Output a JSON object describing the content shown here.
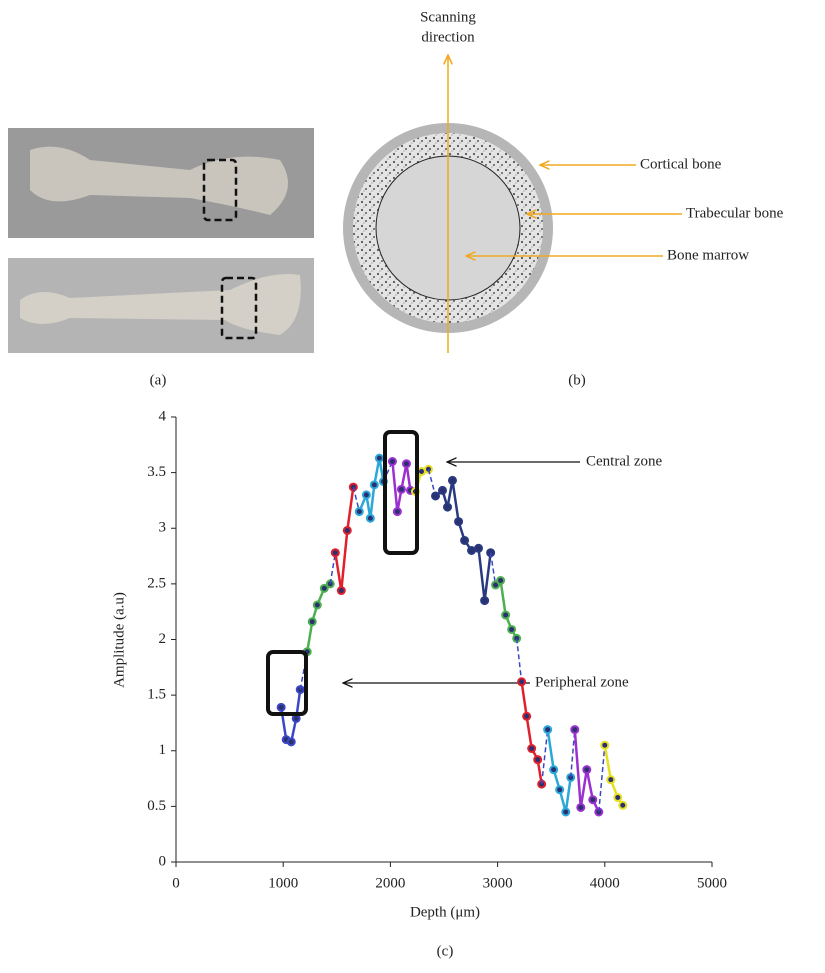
{
  "panels": {
    "a": {
      "label": "(a)"
    },
    "b": {
      "label": "(b)",
      "scan_label": [
        "Scanning",
        "direction"
      ],
      "callouts": [
        "Cortical bone",
        "Trabecular bone",
        "Bone marrow"
      ]
    },
    "c": {
      "label": "(c)"
    }
  },
  "chart_data": {
    "type": "line",
    "xlabel": "Depth (μm)",
    "ylabel": "Amplitude (a.u)",
    "annotations": [
      "Central zone",
      "Peripheral zone"
    ],
    "xlim": [
      0,
      5000
    ],
    "xticks": [
      0,
      1000,
      2000,
      3000,
      4000,
      5000
    ],
    "ylim": [
      0,
      4
    ],
    "yticks": [
      0,
      0.5,
      1,
      1.5,
      2,
      2.5,
      3,
      3.5,
      4
    ],
    "series": [
      {
        "color": "#3b48c6",
        "x": [
          981,
          1028,
          1075,
          1121,
          1159
        ],
        "values": [
          1.39,
          1.1,
          1.08,
          1.29,
          1.55
        ]
      },
      {
        "color": "#4caf50",
        "x": [
          1224,
          1271,
          1318,
          1383,
          1439
        ],
        "values": [
          1.89,
          2.16,
          2.31,
          2.46,
          2.5
        ]
      },
      {
        "color": "#e0202a",
        "x": [
          1486,
          1542,
          1598,
          1654
        ],
        "values": [
          2.78,
          2.44,
          2.98,
          3.37
        ]
      },
      {
        "color": "#2aa8d8",
        "x": [
          1710,
          1776,
          1813,
          1850,
          1897,
          1935
        ],
        "values": [
          3.15,
          3.3,
          3.09,
          3.39,
          3.63,
          3.42
        ]
      },
      {
        "color": "#9b30d0",
        "x": [
          2019,
          2065,
          2103,
          2150,
          2187
        ],
        "values": [
          3.6,
          3.15,
          3.35,
          3.58,
          3.34
        ]
      },
      {
        "color": "#e6e020",
        "x": [
          2234,
          2290,
          2355
        ],
        "values": [
          3.33,
          3.51,
          3.53
        ]
      },
      {
        "color": "#2a3a80",
        "x": [
          2421,
          2486,
          2533,
          2579,
          2636,
          2692,
          2757,
          2822,
          2879,
          2935
        ],
        "values": [
          3.29,
          3.34,
          3.19,
          3.43,
          3.06,
          2.89,
          2.8,
          2.82,
          2.35,
          2.78
        ]
      },
      {
        "color": "#4caf50",
        "x": [
          2981,
          3028,
          3075,
          3131,
          3178
        ],
        "values": [
          2.49,
          2.53,
          2.22,
          2.09,
          2.01
        ]
      },
      {
        "color": "#e0202a",
        "x": [
          3224,
          3271,
          3318,
          3374,
          3411
        ],
        "values": [
          1.62,
          1.31,
          1.02,
          0.92,
          0.7
        ]
      },
      {
        "color": "#2aa8d8",
        "x": [
          3467,
          3523,
          3579,
          3636,
          3682
        ],
        "values": [
          1.19,
          0.83,
          0.65,
          0.45,
          0.76
        ]
      },
      {
        "color": "#9b30d0",
        "x": [
          3720,
          3776,
          3832,
          3888,
          3944
        ],
        "values": [
          1.19,
          0.49,
          0.83,
          0.56,
          0.45
        ]
      },
      {
        "color": "#e6e020",
        "x": [
          4000,
          4056,
          4121,
          4168
        ],
        "values": [
          1.05,
          0.74,
          0.58,
          0.51
        ]
      }
    ]
  }
}
